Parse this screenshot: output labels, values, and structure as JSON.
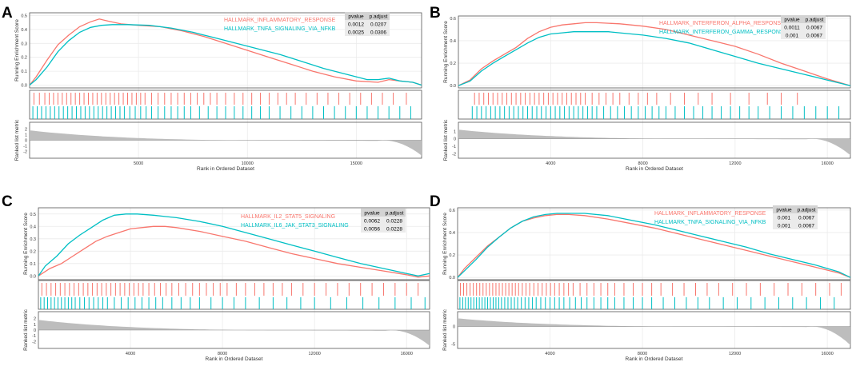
{
  "colors": {
    "series1": "#f8766d",
    "series2": "#00bfc4",
    "rank_fill": "#bdbdbd",
    "table_header": "#d3d3d3",
    "table_cell": "#ebebeb",
    "grid": "#ebebeb",
    "axis": "#333333"
  },
  "chart_data": [
    {
      "panel_label": "A",
      "type": "line",
      "title": "",
      "xlabel": "Rank in Ordered Dataset",
      "ylabel": "Running Enrichment Score",
      "rank_ylabel": "Ranked list metric",
      "xlim": [
        0,
        18000
      ],
      "es_ylim": [
        -0.02,
        0.52
      ],
      "es_yticks": [
        0.0,
        0.1,
        0.2,
        0.3,
        0.4,
        0.5
      ],
      "x_ticks": [
        5000,
        10000,
        15000
      ],
      "rank_ylim": [
        -3.2,
        3.2
      ],
      "rank_yticks": [
        -2,
        -1,
        0,
        1,
        2
      ],
      "table_headers": [
        "pvalue",
        "p.adjust"
      ],
      "series": [
        {
          "name": "HALLMARK_INFLAMMATORY_RESPONSE",
          "pvalue": "0.0012",
          "padjust": "0.0207",
          "x": [
            0,
            300,
            800,
            1300,
            1800,
            2300,
            2800,
            3200,
            3600,
            4200,
            5000,
            6000,
            7000,
            8000,
            9000,
            10000,
            11000,
            12000,
            13000,
            14000,
            15000,
            16000,
            16500,
            17000,
            17600,
            18000
          ],
          "values": [
            0.0,
            0.06,
            0.18,
            0.29,
            0.36,
            0.42,
            0.455,
            0.475,
            0.46,
            0.44,
            0.43,
            0.42,
            0.39,
            0.35,
            0.3,
            0.25,
            0.2,
            0.15,
            0.1,
            0.06,
            0.03,
            0.02,
            0.04,
            0.03,
            0.02,
            0.0
          ],
          "hits": [
            200,
            450,
            700,
            900,
            1100,
            1300,
            1500,
            1700,
            1900,
            2100,
            2300,
            2500,
            2700,
            2900,
            3100,
            3300,
            3500,
            3700,
            3900,
            4100,
            4300,
            4500,
            4700,
            4900,
            5100,
            5300,
            5600,
            5900,
            6200,
            6500,
            6800,
            7100,
            7400,
            7700,
            8000,
            8300,
            8600,
            9000,
            9400,
            9800,
            10200,
            10600,
            11000,
            11400,
            11800,
            12200,
            12700,
            13200,
            13700,
            14200,
            14700,
            15200,
            15700,
            16200,
            16700,
            17300
          ]
        },
        {
          "name": "HALLMARK_TNFA_SIGNALING_VIA_NFKB",
          "pvalue": "0.0025",
          "padjust": "0.0306",
          "x": [
            0,
            300,
            800,
            1300,
            1800,
            2300,
            2800,
            3300,
            3800,
            4500,
            5500,
            6500,
            7500,
            8500,
            9500,
            10500,
            11500,
            12500,
            13500,
            14500,
            15500,
            16000,
            16500,
            17000,
            17600,
            18000
          ],
          "values": [
            0.0,
            0.04,
            0.13,
            0.24,
            0.32,
            0.38,
            0.415,
            0.43,
            0.435,
            0.435,
            0.43,
            0.41,
            0.38,
            0.34,
            0.3,
            0.26,
            0.22,
            0.17,
            0.12,
            0.08,
            0.04,
            0.04,
            0.05,
            0.03,
            0.02,
            0.0
          ],
          "hits": [
            150,
            350,
            550,
            750,
            950,
            1150,
            1350,
            1550,
            1750,
            1950,
            2150,
            2350,
            2550,
            2750,
            2950,
            3150,
            3350,
            3550,
            3750,
            3950,
            4150,
            4350,
            4600,
            4850,
            5100,
            5350,
            5600,
            5900,
            6200,
            6500,
            6800,
            7100,
            7400,
            7800,
            8200,
            8600,
            9000,
            9400,
            9800,
            10200,
            10600,
            11000,
            11500,
            12000,
            12500,
            13000,
            13500,
            14000,
            14500,
            15000,
            15500,
            16000,
            16500,
            17000,
            17500
          ]
        }
      ]
    },
    {
      "panel_label": "B",
      "type": "line",
      "title": "",
      "xlabel": "Rank in Ordered Dataset",
      "ylabel": "Running Enrichment Score",
      "rank_ylabel": "Ranked list metric",
      "xlim": [
        0,
        17000
      ],
      "es_ylim": [
        -0.02,
        0.62
      ],
      "es_yticks": [
        0.0,
        0.2,
        0.4,
        0.6
      ],
      "x_ticks": [
        4000,
        8000,
        12000,
        16000
      ],
      "rank_ylim": [
        -2.6,
        2.2
      ],
      "rank_yticks": [
        -2,
        -1,
        0,
        1
      ],
      "table_headers": [
        "pvalue",
        "p.adjust"
      ],
      "series": [
        {
          "name": "HALLMARK_INTERFERON_ALPHA_RESPONSE",
          "pvalue": "0.0011",
          "padjust": "0.0067",
          "x": [
            0,
            500,
            1000,
            1500,
            2000,
            2500,
            3000,
            3500,
            4000,
            4500,
            5000,
            5500,
            6000,
            7000,
            8000,
            9000,
            10000,
            11000,
            12000,
            13000,
            14000,
            15000,
            16000,
            17000
          ],
          "values": [
            0.0,
            0.05,
            0.15,
            0.22,
            0.28,
            0.34,
            0.42,
            0.48,
            0.52,
            0.54,
            0.55,
            0.56,
            0.56,
            0.55,
            0.53,
            0.5,
            0.45,
            0.4,
            0.35,
            0.28,
            0.2,
            0.13,
            0.06,
            0.0
          ],
          "hits": [
            700,
            900,
            1100,
            1300,
            1500,
            1700,
            1900,
            2100,
            2300,
            2500,
            2700,
            2900,
            3100,
            3300,
            3500,
            3700,
            3900,
            4100,
            4300,
            4500,
            4700,
            4900,
            5100,
            5300,
            5500,
            5800,
            6100,
            6400,
            6700,
            7000,
            7400,
            7800,
            8200,
            8600,
            9200,
            9800,
            10400,
            11000,
            11800,
            12600,
            13400,
            14000,
            14700
          ]
        },
        {
          "name": "HALLMARK_INTERFERON_GAMMA_RESPONSE",
          "pvalue": "0.001",
          "padjust": "0.0067",
          "x": [
            0,
            500,
            1000,
            1500,
            2000,
            2500,
            3000,
            3500,
            4000,
            4500,
            5000,
            5500,
            6000,
            6500,
            7000,
            8000,
            9000,
            10000,
            11000,
            12000,
            13000,
            14000,
            15000,
            16000,
            17000
          ],
          "values": [
            0.0,
            0.04,
            0.13,
            0.2,
            0.26,
            0.32,
            0.38,
            0.43,
            0.46,
            0.47,
            0.48,
            0.48,
            0.48,
            0.48,
            0.47,
            0.45,
            0.42,
            0.38,
            0.32,
            0.26,
            0.2,
            0.15,
            0.1,
            0.05,
            0.0
          ],
          "hits": [
            600,
            800,
            1000,
            1200,
            1400,
            1600,
            1800,
            2000,
            2200,
            2400,
            2600,
            2800,
            3000,
            3200,
            3400,
            3600,
            3800,
            4000,
            4200,
            4400,
            4600,
            4800,
            5000,
            5200,
            5400,
            5600,
            5800,
            6000,
            6300,
            6600,
            6900,
            7200,
            7500,
            7800,
            8100,
            8400,
            8700,
            9000,
            9400,
            9800,
            10200,
            10600,
            11000,
            11400,
            11800,
            12200,
            12600,
            13000,
            13500,
            14000,
            14500,
            15000,
            15500,
            16000,
            16500
          ]
        }
      ]
    },
    {
      "panel_label": "C",
      "type": "line",
      "title": "",
      "xlabel": "Rank in Ordered Dataset",
      "ylabel": "Running Enrichment Score",
      "rank_ylabel": "Ranked list metric",
      "xlim": [
        0,
        17000
      ],
      "es_ylim": [
        -0.03,
        0.55
      ],
      "es_yticks": [
        0.0,
        0.1,
        0.2,
        0.3,
        0.4,
        0.5
      ],
      "x_ticks": [
        4000,
        8000,
        12000,
        16000
      ],
      "rank_ylim": [
        -3.2,
        3.2
      ],
      "rank_yticks": [
        -2,
        -1,
        0,
        1,
        2
      ],
      "table_headers": [
        "pvalue",
        "p.adjust"
      ],
      "series": [
        {
          "name": "HALLMARK_IL2_STAT5_SIGNALING",
          "pvalue": "0.0062",
          "padjust": "0.0228",
          "x": [
            0,
            500,
            1000,
            1500,
            2000,
            2500,
            3000,
            3500,
            4000,
            4500,
            5000,
            5500,
            6000,
            7000,
            8000,
            9000,
            10000,
            11000,
            12000,
            13000,
            14000,
            15000,
            16000,
            16500,
            17000
          ],
          "values": [
            0.0,
            0.06,
            0.1,
            0.16,
            0.22,
            0.28,
            0.32,
            0.35,
            0.38,
            0.39,
            0.4,
            0.4,
            0.39,
            0.36,
            0.32,
            0.28,
            0.23,
            0.18,
            0.14,
            0.1,
            0.07,
            0.04,
            0.01,
            -0.01,
            0.0
          ],
          "hits": [
            150,
            350,
            550,
            750,
            950,
            1150,
            1350,
            1550,
            1750,
            1950,
            2150,
            2350,
            2550,
            2750,
            2950,
            3150,
            3350,
            3550,
            3750,
            3950,
            4150,
            4350,
            4550,
            4800,
            5050,
            5300,
            5550,
            5800,
            6100,
            6400,
            6700,
            7000,
            7300,
            7600,
            7900,
            8200,
            8600,
            9000,
            9400,
            9800,
            10200,
            10600,
            11000,
            11500,
            12000,
            12500,
            13000,
            13500,
            14000,
            14500,
            15000,
            15500,
            16000,
            16500
          ]
        },
        {
          "name": "HALLMARK_IL6_JAK_STAT3_SIGNALING",
          "pvalue": "0.0056",
          "padjust": "0.0228",
          "x": [
            0,
            300,
            800,
            1300,
            1800,
            2300,
            2800,
            3300,
            3800,
            4300,
            5000,
            5500,
            6000,
            7000,
            8000,
            9000,
            10000,
            11000,
            12000,
            13000,
            14000,
            15000,
            16000,
            16500,
            17000
          ],
          "values": [
            0.0,
            0.08,
            0.16,
            0.26,
            0.33,
            0.39,
            0.45,
            0.49,
            0.5,
            0.5,
            0.49,
            0.48,
            0.47,
            0.44,
            0.4,
            0.35,
            0.3,
            0.25,
            0.2,
            0.15,
            0.1,
            0.06,
            0.02,
            0.0,
            0.02
          ],
          "hits": [
            100,
            250,
            400,
            550,
            700,
            850,
            1000,
            1150,
            1300,
            1450,
            1600,
            1800,
            2000,
            2200,
            2400,
            2600,
            2800,
            3000,
            3300,
            3600,
            3900,
            4200,
            4500,
            4800,
            5100,
            5400,
            5800,
            6200,
            6600,
            7000,
            7500,
            8000,
            8500,
            9000,
            9600,
            10200,
            10800,
            11400,
            12000,
            12700,
            13400,
            14100,
            14800,
            15500,
            16200,
            16800
          ]
        }
      ]
    },
    {
      "panel_label": "D",
      "type": "line",
      "title": "",
      "xlabel": "Rank in Ordered Dataset",
      "ylabel": "Running Enrichment Score",
      "rank_ylabel": "Ranked list metric",
      "xlim": [
        0,
        17000
      ],
      "es_ylim": [
        -0.02,
        0.62
      ],
      "es_yticks": [
        0.0,
        0.2,
        0.4,
        0.6
      ],
      "x_ticks": [
        4000,
        8000,
        12000,
        16000
      ],
      "rank_ylim": [
        -6.2,
        4.2
      ],
      "rank_yticks": [
        -5,
        0
      ],
      "table_headers": [
        "pvalue",
        "p.adjust"
      ],
      "series": [
        {
          "name": "HALLMARK_INFLAMMATORY_RESPONSE",
          "pvalue": "0.001",
          "padjust": "0.0067",
          "x": [
            0,
            300,
            800,
            1300,
            1800,
            2300,
            2800,
            3300,
            3800,
            4300,
            4800,
            5500,
            6500,
            7500,
            8500,
            9500,
            10500,
            11500,
            12500,
            13500,
            14500,
            15500,
            16500,
            17000
          ],
          "values": [
            0.0,
            0.08,
            0.18,
            0.28,
            0.36,
            0.44,
            0.5,
            0.53,
            0.55,
            0.56,
            0.56,
            0.55,
            0.52,
            0.48,
            0.44,
            0.39,
            0.34,
            0.29,
            0.24,
            0.19,
            0.14,
            0.09,
            0.04,
            0.0
          ],
          "hits": [
            120,
            260,
            400,
            540,
            680,
            820,
            960,
            1100,
            1240,
            1380,
            1520,
            1660,
            1800,
            1940,
            2080,
            2220,
            2360,
            2500,
            2640,
            2800,
            2960,
            3120,
            3300,
            3480,
            3660,
            3840,
            4020,
            4200,
            4400,
            4600,
            4800,
            5000,
            5300,
            5600,
            5900,
            6200,
            6500,
            6800,
            7200,
            7600,
            8000,
            8400,
            8800,
            9300,
            9800,
            10300,
            10800,
            11300,
            11900,
            12500,
            13100,
            13700,
            14300,
            14900,
            15500,
            16100,
            16600
          ]
        },
        {
          "name": "HALLMARK_TNFA_SIGNALING_VIA_NFKB",
          "pvalue": "0.001",
          "padjust": "0.0067",
          "x": [
            0,
            300,
            800,
            1300,
            1800,
            2300,
            2800,
            3300,
            3800,
            4300,
            4800,
            5500,
            6500,
            7500,
            8500,
            9500,
            10500,
            11500,
            12500,
            13500,
            14500,
            15500,
            16500,
            17000
          ],
          "values": [
            0.0,
            0.06,
            0.16,
            0.27,
            0.36,
            0.44,
            0.5,
            0.54,
            0.56,
            0.57,
            0.57,
            0.57,
            0.55,
            0.51,
            0.47,
            0.42,
            0.37,
            0.32,
            0.27,
            0.21,
            0.16,
            0.11,
            0.05,
            0.0
          ],
          "hits": [
            100,
            220,
            340,
            460,
            580,
            700,
            820,
            940,
            1060,
            1180,
            1300,
            1420,
            1540,
            1660,
            1780,
            1900,
            2040,
            2180,
            2320,
            2460,
            2600,
            2760,
            2920,
            3080,
            3240,
            3400,
            3600,
            3800,
            4000,
            4200,
            4400,
            4600,
            4850,
            5100,
            5350,
            5600,
            5900,
            6200,
            6500,
            6800,
            7200,
            7600,
            8000,
            8400,
            8900,
            9400,
            9900,
            10400,
            10900,
            11500,
            12100,
            12700,
            13300,
            13900,
            14500,
            15100,
            15700,
            16300
          ]
        }
      ]
    }
  ]
}
